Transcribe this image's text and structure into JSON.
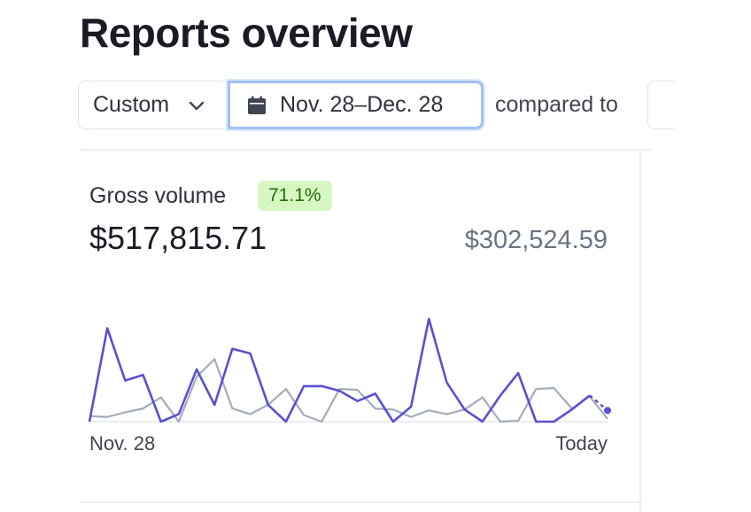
{
  "page": {
    "title": "Reports overview"
  },
  "filters": {
    "range_preset": "Custom",
    "date_range": "Nov. 28–Dec. 28",
    "compared_to_label": "compared to"
  },
  "metric": {
    "label": "Gross volume",
    "change_badge": "71.1%",
    "current_value": "$517,815.71",
    "previous_value": "$302,524.59"
  },
  "colors": {
    "current_series": "#5b4fd1",
    "previous_series": "#a3acb9",
    "badge_bg": "#d7f7c2",
    "badge_text": "#217005",
    "focus_ring": "#9fc0f3"
  },
  "chart_data": {
    "type": "line",
    "x_start_label": "Nov. 28",
    "x_end_label": "Today",
    "series": [
      {
        "key": "current",
        "values": [
          0,
          100,
          44,
          50,
          0,
          8,
          56,
          18,
          78,
          73,
          18,
          0,
          38,
          38,
          33,
          22,
          30,
          0,
          16,
          110,
          42,
          13,
          0,
          28,
          52,
          0,
          0,
          13,
          28,
          12
        ]
      },
      {
        "key": "previous",
        "values": [
          6,
          5,
          10,
          14,
          26,
          0,
          48,
          67,
          14,
          8,
          18,
          35,
          7,
          0,
          35,
          34,
          14,
          13,
          5,
          12,
          8,
          13,
          26,
          0,
          1,
          35,
          36,
          14,
          27,
          3
        ]
      }
    ]
  }
}
